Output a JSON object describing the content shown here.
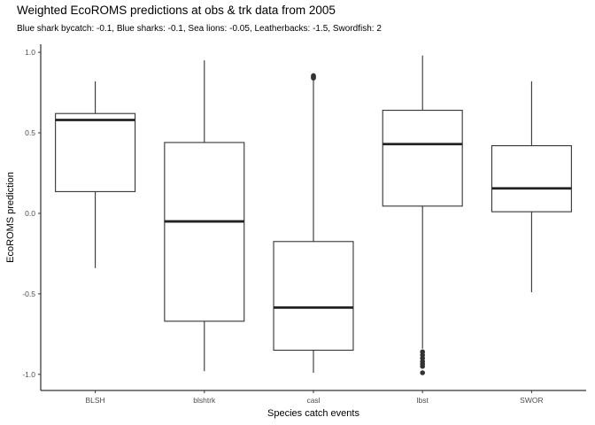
{
  "chart_data": {
    "type": "box",
    "title": "Weighted EcoROMS predictions at obs & trk data from 2005",
    "subtitle": "Blue shark bycatch: -0.1, Blue sharks: -0.1, Sea lions: -0.05, Leatherbacks: -1.5, Swordfish: 2",
    "xlabel": "Species catch events",
    "ylabel": "EcoROMS prediction",
    "ylim": [
      -1.1,
      1.05
    ],
    "yticks": [
      -1.0,
      -0.5,
      0.0,
      0.5,
      1.0
    ],
    "ytick_labels": [
      "-1.0",
      "-0.5",
      "0.0",
      "0.5",
      "1.0"
    ],
    "grid": false,
    "categories": [
      "BLSH",
      "blshtrk",
      "casl",
      "lbst",
      "SWOR"
    ],
    "boxes": [
      {
        "category": "BLSH",
        "whisker_low": -0.34,
        "q1": 0.135,
        "median": 0.58,
        "q3": 0.62,
        "whisker_high": 0.82,
        "outliers": []
      },
      {
        "category": "blshtrk",
        "whisker_low": -0.98,
        "q1": -0.67,
        "median": -0.05,
        "q3": 0.44,
        "whisker_high": 0.95,
        "outliers": []
      },
      {
        "category": "casl",
        "whisker_low": -0.99,
        "q1": -0.85,
        "median": -0.585,
        "q3": -0.175,
        "whisker_high": 0.83,
        "outliers": [
          0.84,
          0.845,
          0.85,
          0.855
        ]
      },
      {
        "category": "lbst",
        "whisker_low": -0.84,
        "q1": 0.045,
        "median": 0.43,
        "q3": 0.64,
        "whisker_high": 0.98,
        "outliers": [
          -0.86,
          -0.88,
          -0.9,
          -0.92,
          -0.935,
          -0.95,
          -0.99
        ]
      },
      {
        "category": "SWOR",
        "whisker_low": -0.49,
        "q1": 0.01,
        "median": 0.155,
        "q3": 0.42,
        "whisker_high": 0.82,
        "outliers": []
      }
    ]
  }
}
